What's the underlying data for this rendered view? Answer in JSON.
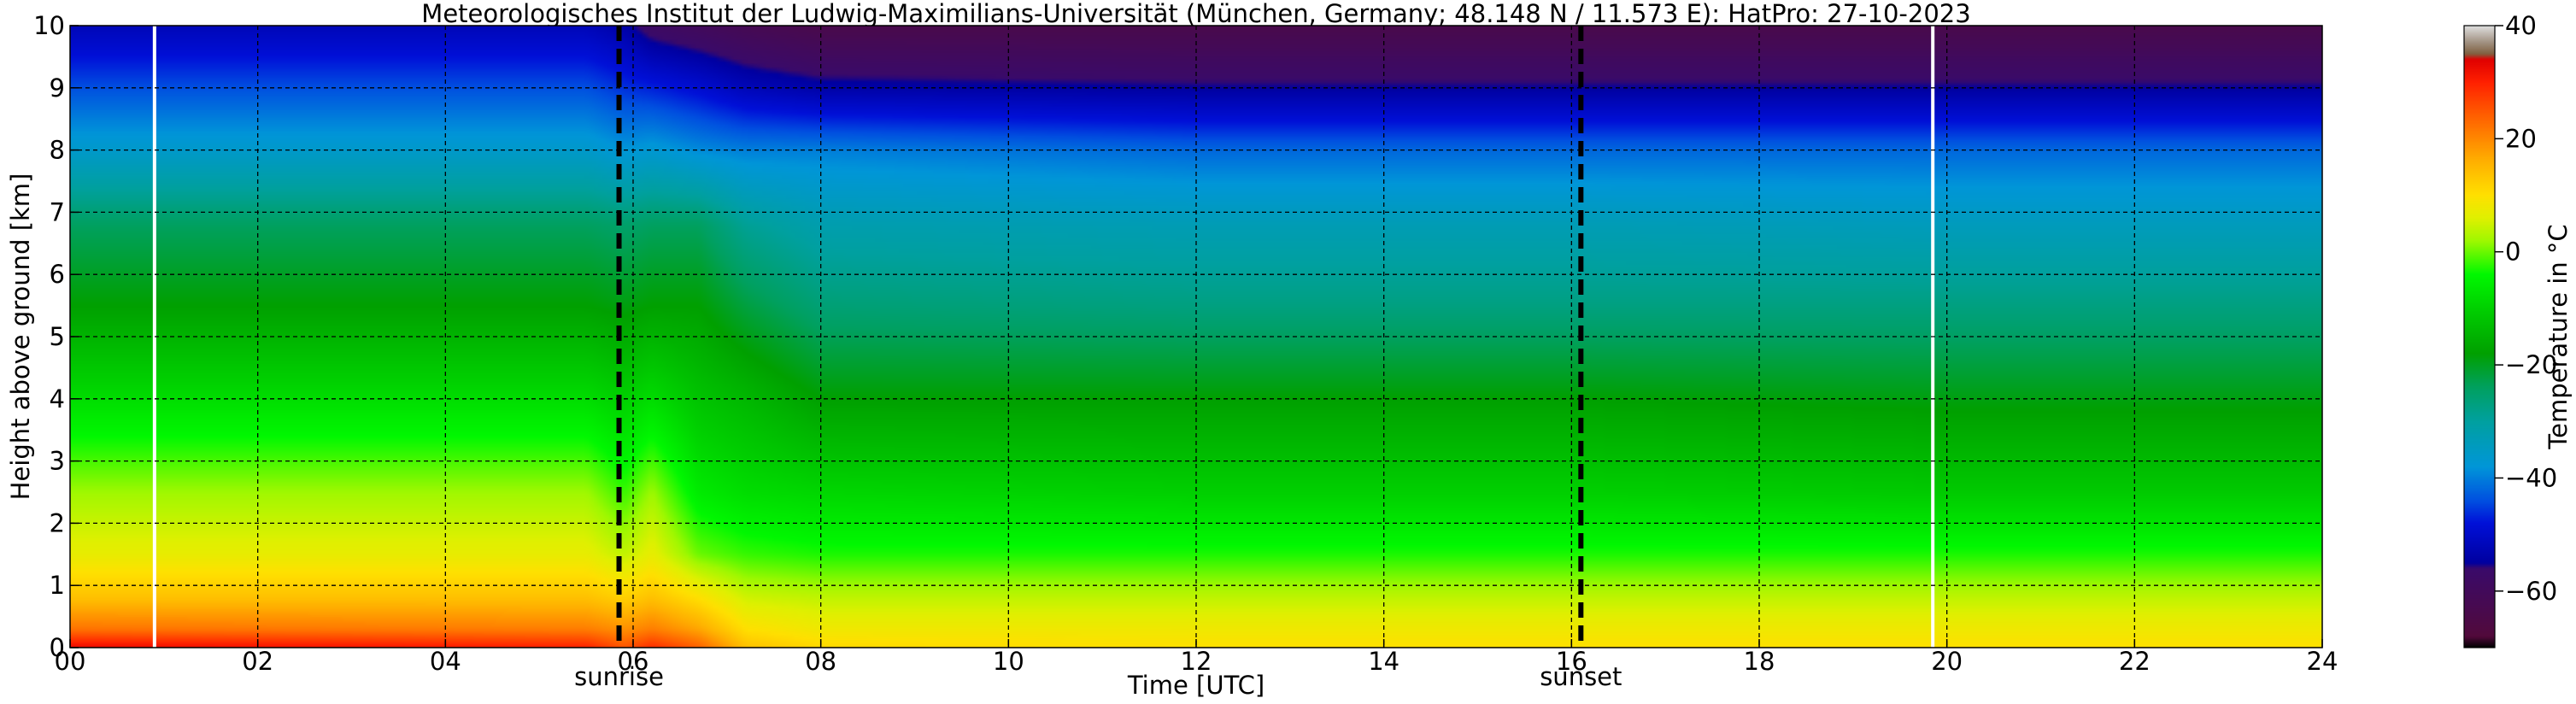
{
  "chart_data": {
    "type": "heatmap",
    "title": "Meteorologisches Institut der Ludwig-Maximilians-Universität (München, Germany; 48.148 N / 11.573 E):    HatPro: 27-10-2023",
    "xlabel": "Time [UTC]",
    "ylabel": "Height above ground [km]",
    "xlim": [
      0,
      24
    ],
    "ylim": [
      0,
      10
    ],
    "x_ticks": [
      "00",
      "02",
      "04",
      "06",
      "08",
      "10",
      "12",
      "14",
      "16",
      "18",
      "20",
      "22",
      "24"
    ],
    "y_ticks": [
      "0",
      "1",
      "2",
      "3",
      "4",
      "5",
      "6",
      "7",
      "8",
      "9",
      "10"
    ],
    "grid": true,
    "colorbar": {
      "label": "Temperature in °C",
      "range": [
        -70,
        40
      ],
      "ticks": [
        "-60",
        "-40",
        "-20",
        "0",
        "20",
        "40"
      ],
      "stops": [
        {
          "value": -70,
          "color": "#000000"
        },
        {
          "value": -68,
          "color": "#520a3c"
        },
        {
          "value": -56,
          "color": "#3a0a6a"
        },
        {
          "value": -55,
          "color": "#0000a0"
        },
        {
          "value": -48,
          "color": "#0010d8"
        },
        {
          "value": -44,
          "color": "#0050e0"
        },
        {
          "value": -38,
          "color": "#0096d8"
        },
        {
          "value": -30,
          "color": "#00a0a0"
        },
        {
          "value": -24,
          "color": "#00a060"
        },
        {
          "value": -18,
          "color": "#00a000"
        },
        {
          "value": -10,
          "color": "#00d000"
        },
        {
          "value": -4,
          "color": "#00f800"
        },
        {
          "value": 2,
          "color": "#a0f800"
        },
        {
          "value": 6,
          "color": "#e0f000"
        },
        {
          "value": 10,
          "color": "#ffe000"
        },
        {
          "value": 16,
          "color": "#ffb000"
        },
        {
          "value": 24,
          "color": "#ff6000"
        },
        {
          "value": 30,
          "color": "#ff2000"
        },
        {
          "value": 34,
          "color": "#e00000"
        },
        {
          "value": 35,
          "color": "#806040"
        },
        {
          "value": 37,
          "color": "#a09080"
        },
        {
          "value": 40,
          "color": "#e0e0e0"
        }
      ]
    },
    "profile_heights_km": [
      0,
      0.3,
      0.8,
      1.5,
      2.5,
      4,
      5.5,
      6.8,
      8,
      9,
      10
    ],
    "profiles": [
      {
        "t": 0,
        "temps": [
          33,
          22,
          14,
          7,
          2,
          -8,
          -18,
          -24,
          -36,
          -44,
          -52
        ]
      },
      {
        "t": 5.5,
        "temps": [
          30,
          21,
          14,
          7,
          2,
          -8,
          -18,
          -24,
          -36,
          -44,
          -52
        ]
      },
      {
        "t": 5.9,
        "temps": [
          25,
          19,
          12,
          4,
          -2,
          -10,
          -19,
          -25,
          -38,
          -46,
          -54
        ]
      },
      {
        "t": 6.2,
        "temps": [
          29,
          21,
          14,
          7,
          2,
          -8,
          -18,
          -24,
          -37,
          -47,
          -58
        ]
      },
      {
        "t": 6.7,
        "temps": [
          24,
          17,
          10,
          0,
          -6,
          -12,
          -18,
          -24,
          -39,
          -49,
          -60
        ]
      },
      {
        "t": 7.2,
        "temps": [
          14,
          10,
          5,
          -2,
          -8,
          -14,
          -22,
          -29,
          -40,
          -52,
          -62
        ]
      },
      {
        "t": 8,
        "temps": [
          11,
          8,
          4,
          -3,
          -9,
          -18,
          -26,
          -32,
          -40,
          -54,
          -64
        ]
      },
      {
        "t": 12,
        "temps": [
          10,
          8,
          4,
          -3,
          -10,
          -18,
          -27,
          -33,
          -42,
          -55,
          -64
        ]
      },
      {
        "t": 16,
        "temps": [
          10,
          8,
          4,
          -3,
          -10,
          -18,
          -27,
          -33,
          -42,
          -55,
          -64
        ]
      },
      {
        "t": 20,
        "temps": [
          10,
          8,
          4,
          -3,
          -11,
          -19,
          -27,
          -34,
          -42,
          -55,
          -64
        ]
      },
      {
        "t": 24,
        "temps": [
          10,
          8,
          4,
          -3,
          -11,
          -19,
          -27,
          -34,
          -42,
          -55,
          -64
        ]
      }
    ],
    "missing_data_times": [
      0.9,
      19.85
    ],
    "events": [
      {
        "label": "sunrise",
        "time": 5.85
      },
      {
        "label": "sunset",
        "time": 16.1
      }
    ]
  }
}
